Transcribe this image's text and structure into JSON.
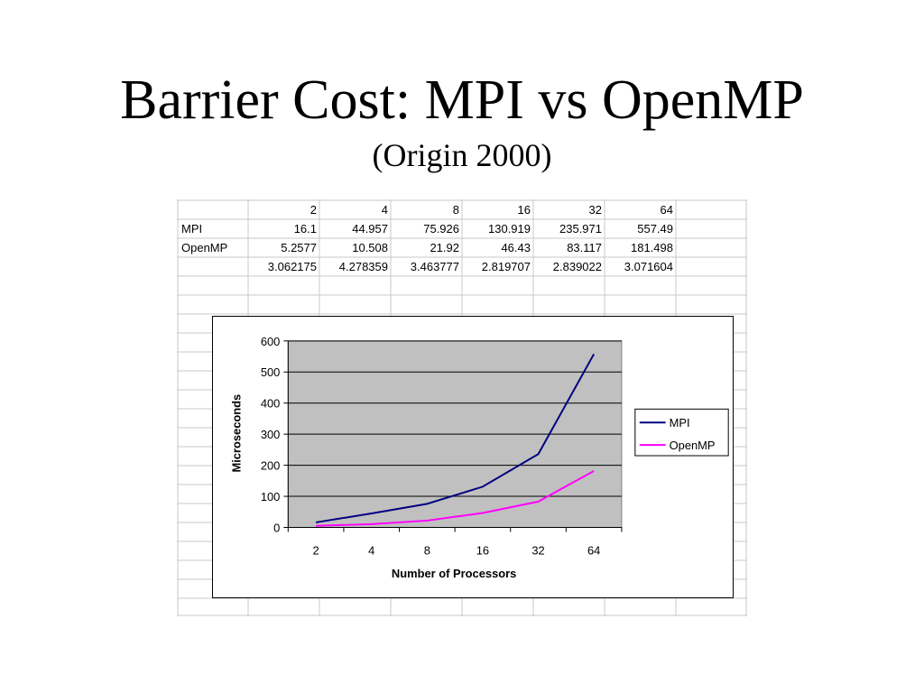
{
  "slide": {
    "title": "Barrier Cost: MPI vs OpenMP",
    "subtitle": "(Origin 2000)"
  },
  "table": {
    "header": [
      "",
      "2",
      "4",
      "8",
      "16",
      "32",
      "64",
      ""
    ],
    "rows": [
      [
        "MPI",
        "16.1",
        "44.957",
        "75.926",
        "130.919",
        "235.971",
        "557.49",
        ""
      ],
      [
        "OpenMP",
        "5.2577",
        "10.508",
        "21.92",
        "46.43",
        "83.117",
        "181.498",
        ""
      ],
      [
        "",
        "3.062175",
        "4.278359",
        "3.463777",
        "2.819707",
        "2.839022",
        "3.071604",
        ""
      ]
    ]
  },
  "chart_data": {
    "type": "line",
    "categories": [
      "2",
      "4",
      "8",
      "16",
      "32",
      "64"
    ],
    "series": [
      {
        "name": "MPI",
        "values": [
          16.1,
          44.957,
          75.926,
          130.919,
          235.971,
          557.49
        ],
        "color": "#000080"
      },
      {
        "name": "OpenMP",
        "values": [
          5.2577,
          10.508,
          21.92,
          46.43,
          83.117,
          181.498
        ],
        "color": "#ff00ff"
      }
    ],
    "title": "",
    "xlabel": "Number of Processors",
    "ylabel": "Microseconds",
    "ylim": [
      0,
      600
    ],
    "yticks": [
      0,
      100,
      200,
      300,
      400,
      500,
      600
    ],
    "grid": true,
    "plot_background": "#c0c0c0",
    "legend": "right"
  }
}
